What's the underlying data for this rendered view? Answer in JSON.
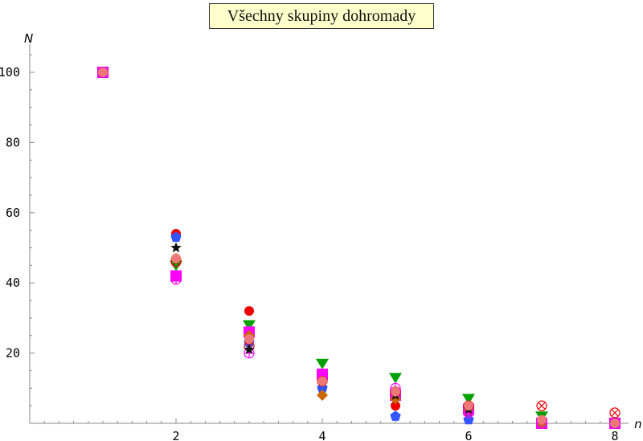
{
  "chart_data": {
    "type": "scatter",
    "title": "Všechny skupiny dohromady",
    "xlabel": "n",
    "ylabel": "N",
    "xlim": [
      0,
      8.1
    ],
    "ylim": [
      0,
      108
    ],
    "x_ticks": [
      2,
      4,
      6,
      8
    ],
    "y_ticks": [
      20,
      40,
      60,
      80,
      100
    ],
    "grid": false,
    "series": [
      {
        "marker": "circle",
        "color": "#ee0000",
        "x": [
          1,
          2,
          3,
          4,
          5,
          6,
          7,
          8
        ],
        "y": [
          100,
          54,
          32,
          10,
          5,
          3,
          0,
          0
        ]
      },
      {
        "marker": "triangle-down",
        "color": "#00a000",
        "x": [
          1,
          2,
          3,
          4,
          5,
          6,
          7,
          8
        ],
        "y": [
          100,
          45,
          28,
          17,
          13,
          7,
          2,
          0
        ]
      },
      {
        "marker": "square",
        "color": "#ff00ff",
        "x": [
          1,
          2,
          3,
          4,
          5,
          6,
          7,
          8
        ],
        "y": [
          100,
          42,
          26,
          14,
          8,
          4,
          0,
          0
        ]
      },
      {
        "marker": "pentagon",
        "color": "#3355ff",
        "x": [
          1,
          2,
          3,
          4,
          5,
          6,
          7,
          8
        ],
        "y": [
          100,
          53,
          23,
          10,
          2,
          1,
          0,
          0
        ]
      },
      {
        "marker": "diamond",
        "color": "#cc6600",
        "x": [
          1,
          2,
          3,
          4,
          5,
          6,
          7,
          8
        ],
        "y": [
          100,
          47,
          25,
          8,
          7,
          4,
          0,
          0
        ]
      },
      {
        "marker": "circle-cross",
        "color": "#ee0000",
        "x": [
          1,
          2,
          3,
          4,
          5,
          6,
          7,
          8
        ],
        "y": [
          100,
          46,
          22,
          12,
          9,
          5,
          5,
          3
        ]
      },
      {
        "marker": "circle-plus",
        "color": "#ff00ff",
        "x": [
          1,
          2,
          3,
          4,
          5,
          6,
          7,
          8
        ],
        "y": [
          100,
          41,
          20,
          13,
          10,
          3,
          0,
          0
        ]
      },
      {
        "marker": "star",
        "color": "#111111",
        "x": [
          1,
          2,
          3,
          4,
          5,
          6,
          7,
          8
        ],
        "y": [
          100,
          50,
          21,
          12,
          8,
          4,
          1,
          0
        ]
      },
      {
        "marker": "circle",
        "color": "#ee7777",
        "x": [
          1,
          2,
          3,
          4,
          5,
          6,
          7,
          8
        ],
        "y": [
          100,
          47,
          24,
          12,
          9,
          5,
          1,
          0
        ]
      }
    ]
  }
}
